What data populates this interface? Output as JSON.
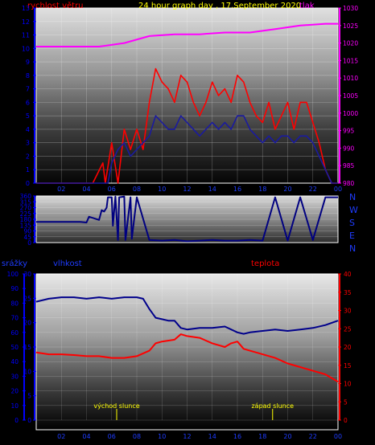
{
  "header": {
    "wind_label": "rychlost větru",
    "title": "24 hour graph day , 17.September 2020",
    "pressure_label": "tlak"
  },
  "labels": {
    "precip": "srážky",
    "humidity": "vlhkost",
    "temperature": "teplota",
    "sunrise": "východ slunce",
    "sunset": "západ slunce"
  },
  "compass": [
    "N",
    "W",
    "S",
    "E",
    "N"
  ],
  "colors": {
    "wind_gust": "#ff0000",
    "wind_avg": "#1a1aa0",
    "pressure": "#ff00ff",
    "wind_dir": "#000080",
    "humidity": "#00008b",
    "temperature": "#ff0000",
    "axis_left": "#0000ff",
    "axis_right_pressure": "#ff00ff",
    "axis_right_temp": "#ff0000",
    "title": "#ffff00"
  },
  "chart_data": [
    {
      "type": "line",
      "title": "24 hour graph day , 17.September 2020",
      "x_ticks": [
        "02",
        "04",
        "06",
        "08",
        "10",
        "12",
        "14",
        "16",
        "18",
        "20",
        "22",
        "00"
      ],
      "xlim": [
        0,
        24
      ],
      "y_left": {
        "label": "rychlost větru",
        "ticks": [
          0,
          1,
          2,
          3,
          4,
          5,
          6,
          7,
          8,
          9,
          10,
          11,
          12,
          13
        ],
        "ylim": [
          0,
          13
        ]
      },
      "y_right": {
        "label": "tlak",
        "ticks": [
          980,
          985,
          990,
          995,
          1000,
          1005,
          1010,
          1015,
          1020,
          1025,
          1030
        ],
        "ylim": [
          980,
          1030
        ]
      },
      "series": [
        {
          "name": "tlak",
          "axis": "right",
          "x": [
            0,
            3,
            5,
            7,
            9,
            11,
            13,
            15,
            17,
            19,
            21,
            23,
            24
          ],
          "values": [
            1019,
            1019,
            1019,
            1020,
            1022,
            1022.5,
            1022.5,
            1023,
            1023,
            1024,
            1025,
            1025.5,
            1025.5
          ]
        },
        {
          "name": "gust",
          "axis": "left",
          "x": [
            0,
            4.5,
            5.3,
            5.5,
            6,
            6.5,
            7,
            7.5,
            8,
            8.5,
            9,
            9.5,
            10,
            10.5,
            11,
            11.5,
            12,
            12.5,
            13,
            13.5,
            14,
            14.5,
            15,
            15.5,
            16,
            16.5,
            17,
            17.5,
            18,
            18.5,
            19,
            19.5,
            20,
            20.5,
            21,
            21.5,
            22,
            22.5,
            23,
            23.5,
            24
          ],
          "values": [
            0,
            0,
            1.5,
            0,
            3,
            0,
            4,
            2.5,
            4,
            2.5,
            6,
            8.5,
            7.5,
            7,
            6,
            8,
            7.5,
            6,
            5,
            6,
            7.5,
            6.5,
            7,
            6,
            8,
            7.5,
            6,
            5,
            4.5,
            6,
            4,
            5,
            6,
            4,
            6,
            6,
            4.5,
            3,
            1,
            0,
            0
          ]
        },
        {
          "name": "average",
          "axis": "left",
          "x": [
            0,
            5.5,
            5.7,
            6,
            6.5,
            7,
            7.5,
            8,
            8.5,
            9,
            9.5,
            10,
            10.5,
            11,
            11.5,
            12,
            12.5,
            13,
            13.5,
            14,
            14.5,
            15,
            15.5,
            16,
            16.5,
            17,
            17.5,
            18,
            18.5,
            19,
            19.5,
            20,
            20.5,
            21,
            21.5,
            22,
            22.5,
            23,
            23.5,
            24
          ],
          "values": [
            0,
            0,
            0,
            1.5,
            2.5,
            3,
            2,
            2.5,
            3,
            3.5,
            5,
            4.5,
            4,
            4,
            5,
            4.5,
            4,
            3.5,
            4,
            4.5,
            4,
            4.5,
            4,
            5,
            5,
            4,
            3.5,
            3,
            3.5,
            3,
            3.5,
            3.5,
            3,
            3.5,
            3.5,
            3,
            2,
            1,
            0,
            0
          ]
        }
      ]
    },
    {
      "type": "line",
      "y_ticks": [
        0,
        45,
        90,
        135,
        180,
        225,
        270,
        315,
        360
      ],
      "ylim": [
        0,
        360
      ],
      "xlim": [
        0,
        24
      ],
      "series": [
        {
          "name": "wind direction",
          "x": [
            0,
            3.5,
            4,
            4.2,
            5,
            5.2,
            5.4,
            5.6,
            5.7,
            6,
            6.1,
            6.3,
            6.5,
            6.6,
            7,
            7.1,
            7.5,
            7.6,
            8,
            9,
            10,
            11,
            12,
            13,
            14,
            15,
            16,
            17,
            18,
            19,
            20,
            21,
            22,
            23,
            24
          ],
          "values": [
            160,
            160,
            155,
            200,
            175,
            250,
            240,
            270,
            350,
            350,
            130,
            355,
            20,
            350,
            355,
            20,
            350,
            30,
            350,
            20,
            15,
            20,
            10,
            15,
            20,
            15,
            15,
            20,
            15,
            350,
            15,
            350,
            20,
            350,
            350
          ]
        }
      ]
    },
    {
      "type": "line",
      "x_ticks": [
        "02",
        "04",
        "06",
        "08",
        "10",
        "12",
        "14",
        "16",
        "18",
        "20",
        "22",
        "00"
      ],
      "xlim": [
        0,
        24
      ],
      "y_left_outer": {
        "label": "srážky",
        "ticks": [
          0,
          10,
          20,
          30,
          40,
          50,
          60,
          70,
          80,
          90,
          100
        ],
        "ylim": [
          0,
          100
        ]
      },
      "y_left_inner": {
        "label": "vlhkost",
        "ticks": [
          0,
          5,
          10,
          15,
          20,
          25,
          30
        ],
        "ylim": [
          0,
          30
        ]
      },
      "y_right": {
        "label": "teplota",
        "ticks": [
          0,
          5,
          10,
          15,
          20,
          25,
          30,
          35,
          40
        ],
        "ylim": [
          0,
          40
        ]
      },
      "annotations": [
        {
          "label": "východ slunce",
          "x": 6.4
        },
        {
          "label": "západ slunce",
          "x": 18.8
        }
      ],
      "series": [
        {
          "name": "vlhkost",
          "axis": "outer",
          "x": [
            0,
            1,
            2,
            3,
            4,
            5,
            6,
            7,
            8,
            8.5,
            9,
            9.5,
            10,
            10.5,
            11,
            11.5,
            12,
            13,
            14,
            15,
            16,
            16.5,
            17,
            18,
            19,
            20,
            21,
            22,
            23,
            24
          ],
          "values": [
            81,
            83,
            84,
            84,
            83,
            84,
            83,
            84,
            84,
            83,
            76,
            70,
            69,
            68,
            68,
            63,
            62,
            63,
            63,
            64,
            60,
            59,
            60,
            61,
            62,
            61,
            62,
            63,
            65,
            68
          ]
        },
        {
          "name": "teplota",
          "axis": "right",
          "x": [
            0,
            1,
            2,
            3,
            4,
            5,
            6,
            7,
            8,
            9,
            9.5,
            10,
            11,
            11.5,
            12,
            13,
            14,
            15,
            15.5,
            16,
            16.5,
            17,
            18,
            19,
            20,
            21,
            22,
            23,
            24
          ],
          "values": [
            18.5,
            18,
            18,
            17.8,
            17.5,
            17.5,
            17,
            17,
            17.5,
            19,
            21,
            21.5,
            22,
            23.5,
            23,
            22.5,
            21,
            20,
            21,
            21.5,
            19.5,
            19,
            18,
            17,
            15.5,
            14.5,
            13.5,
            12.5,
            10.5
          ]
        }
      ]
    }
  ]
}
